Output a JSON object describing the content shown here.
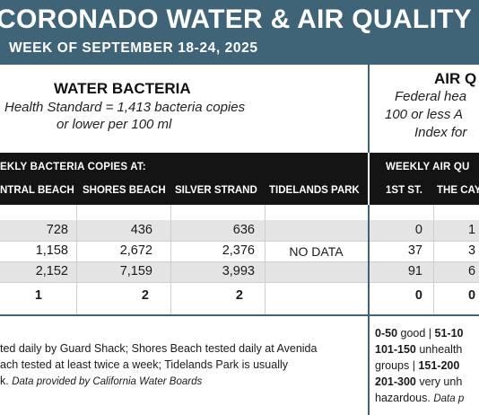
{
  "banner": {
    "title": "CORONADO WATER & AIR QUALITY R",
    "subtitle": "WEEK OF SEPTEMBER 18-24, 2025"
  },
  "water": {
    "title": "WATER BACTERIA",
    "desc_line1": "Health Standard  = 1,413 bacteria copies",
    "desc_line2": "or lower per 100 ml",
    "bar_heading": "EKLY BACTERIA COPIES AT:",
    "columns": [
      "NTRAL BEACH",
      "SHORES BEACH",
      "SILVER STRAND",
      "TIDELANDS PARK"
    ],
    "rows": [
      [
        "728",
        "436",
        "636",
        ""
      ],
      [
        "1,158",
        "2,672",
        "2,376",
        "NO DATA"
      ],
      [
        "2,152",
        "7,159",
        "3,993",
        ""
      ],
      [
        "1",
        "2",
        "2",
        ""
      ]
    ],
    "footnote_line1": "ted daily by Guard Shack; Shores Beach tested daily at Avenida",
    "footnote_line2": "ach tested at least twice a week; Tidelands Park is usually",
    "footnote_line3_a": "k.",
    "footnote_line3_b": "Data provided by California Water Boards"
  },
  "air": {
    "title": "AIR Q",
    "desc_line1": "Federal hea",
    "desc_line2": "100 or less A",
    "desc_line3": "Index for",
    "bar_heading": "WEEKLY AIR QU",
    "columns": [
      "1ST ST.",
      "THE CAY"
    ],
    "rows": [
      [
        "0",
        "1"
      ],
      [
        "37",
        "3"
      ],
      [
        "91",
        "6"
      ],
      [
        "0",
        "0"
      ]
    ],
    "legend_line1_a": "0-50",
    "legend_line1_b": " good | ",
    "legend_line1_c": "51-10",
    "legend_line2_a": "101-150",
    "legend_line2_b": " unhealth",
    "legend_line3_a": "groups | ",
    "legend_line3_b": "151-200",
    "legend_line4_a": "201-300",
    "legend_line4_b": " very unh",
    "legend_line5_a": "hazardous. ",
    "legend_line5_b": "Data p"
  },
  "colors": {
    "banner": "#3f6478",
    "header_bar": "#141414",
    "row_shade": "#e4e4e4"
  }
}
